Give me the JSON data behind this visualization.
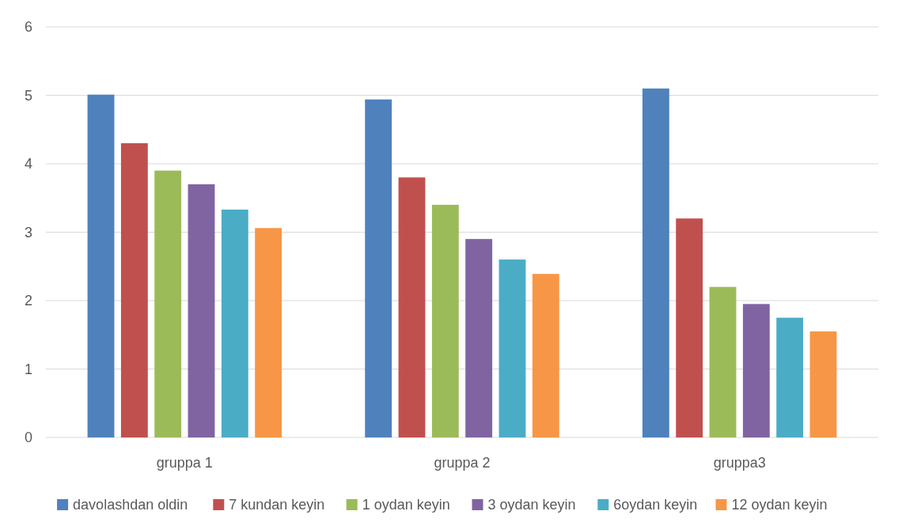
{
  "chart_data": {
    "type": "bar",
    "categories": [
      "gruppa 1",
      "gruppa 2",
      "gruppa3"
    ],
    "series": [
      {
        "name": "davolashdan oldin",
        "color": "#4f81bd",
        "values": [
          5.01,
          4.94,
          5.1
        ]
      },
      {
        "name": "7 kundan keyin",
        "color": "#c0504d",
        "values": [
          4.3,
          3.8,
          3.2
        ]
      },
      {
        "name": "1 oydan keyin",
        "color": "#9bbb59",
        "values": [
          3.9,
          3.4,
          2.2
        ]
      },
      {
        "name": "3 oydan keyin",
        "color": "#8064a2",
        "values": [
          3.7,
          2.9,
          1.95
        ]
      },
      {
        "name": "6oydan keyin",
        "color": "#4bacc6",
        "values": [
          3.33,
          2.6,
          1.75
        ]
      },
      {
        "name": "12 oydan keyin",
        "color": "#f79646",
        "values": [
          3.06,
          2.39,
          1.55
        ]
      }
    ],
    "ylim": [
      0,
      6
    ],
    "yticks": [
      0,
      1,
      2,
      3,
      4,
      5,
      6
    ],
    "grid": "y",
    "legend": "bottom"
  }
}
